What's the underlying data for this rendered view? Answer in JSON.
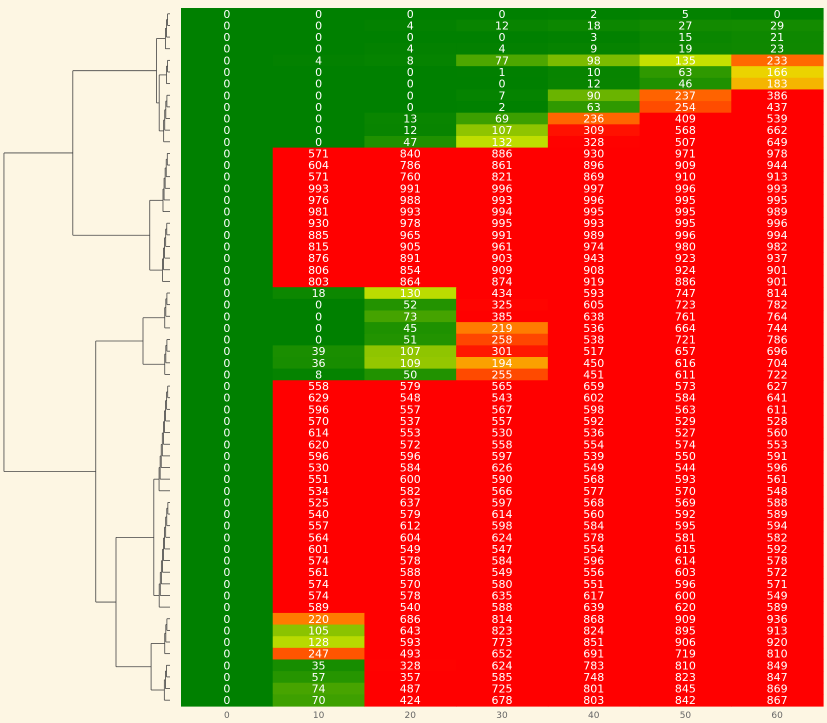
{
  "chart_data": {
    "type": "heatmap",
    "x_ticks": [
      "0",
      "10",
      "20",
      "30",
      "40",
      "50",
      "60"
    ],
    "columns": [
      "0",
      "10",
      "20",
      "30",
      "40",
      "50",
      "60"
    ],
    "color_scale": {
      "low": "#008000",
      "mid_low": "#80c000",
      "mid": "#e0f000",
      "mid_high": "#ff8000",
      "high": "#ff0000",
      "note": "continuous green→yellow→orange→red by value"
    },
    "cell_text_color": "#ffffff",
    "dendrogram": "left",
    "rows": [
      [
        0,
        0,
        0,
        0,
        2,
        5,
        0
      ],
      [
        0,
        0,
        4,
        12,
        18,
        27,
        29
      ],
      [
        0,
        0,
        0,
        0,
        3,
        15,
        21
      ],
      [
        0,
        0,
        4,
        4,
        9,
        19,
        23
      ],
      [
        0,
        4,
        8,
        77,
        98,
        135,
        233
      ],
      [
        0,
        0,
        0,
        1,
        10,
        63,
        166
      ],
      [
        0,
        0,
        0,
        0,
        12,
        46,
        183
      ],
      [
        0,
        0,
        0,
        7,
        90,
        237,
        386
      ],
      [
        0,
        0,
        0,
        2,
        63,
        254,
        437
      ],
      [
        0,
        0,
        13,
        69,
        236,
        409,
        539
      ],
      [
        0,
        0,
        12,
        107,
        309,
        568,
        662
      ],
      [
        0,
        0,
        47,
        132,
        328,
        507,
        649
      ],
      [
        0,
        571,
        840,
        886,
        930,
        971,
        978
      ],
      [
        0,
        604,
        786,
        861,
        896,
        909,
        944
      ],
      [
        0,
        571,
        760,
        821,
        869,
        910,
        913
      ],
      [
        0,
        993,
        991,
        996,
        997,
        996,
        993
      ],
      [
        0,
        976,
        988,
        993,
        996,
        995,
        995
      ],
      [
        0,
        981,
        993,
        994,
        995,
        995,
        989
      ],
      [
        0,
        930,
        978,
        995,
        993,
        995,
        996
      ],
      [
        0,
        885,
        965,
        991,
        989,
        996,
        994
      ],
      [
        0,
        815,
        905,
        961,
        974,
        980,
        982
      ],
      [
        0,
        876,
        891,
        903,
        943,
        923,
        937
      ],
      [
        0,
        806,
        854,
        909,
        908,
        924,
        901
      ],
      [
        0,
        803,
        864,
        874,
        919,
        886,
        901
      ],
      [
        0,
        18,
        130,
        434,
        593,
        747,
        814
      ],
      [
        0,
        0,
        52,
        325,
        605,
        723,
        782
      ],
      [
        0,
        0,
        73,
        385,
        638,
        761,
        764
      ],
      [
        0,
        0,
        45,
        219,
        536,
        664,
        744
      ],
      [
        0,
        0,
        51,
        258,
        538,
        721,
        786
      ],
      [
        0,
        39,
        107,
        301,
        517,
        657,
        696
      ],
      [
        0,
        36,
        109,
        194,
        450,
        616,
        704
      ],
      [
        0,
        8,
        50,
        255,
        451,
        611,
        722
      ],
      [
        0,
        558,
        579,
        565,
        659,
        573,
        627
      ],
      [
        0,
        629,
        548,
        543,
        602,
        584,
        641
      ],
      [
        0,
        596,
        557,
        567,
        598,
        563,
        611
      ],
      [
        0,
        570,
        537,
        557,
        592,
        529,
        528
      ],
      [
        0,
        614,
        553,
        530,
        536,
        527,
        560
      ],
      [
        0,
        620,
        572,
        558,
        554,
        574,
        553
      ],
      [
        0,
        596,
        596,
        597,
        539,
        550,
        591
      ],
      [
        0,
        530,
        584,
        626,
        549,
        544,
        596
      ],
      [
        0,
        551,
        600,
        590,
        568,
        593,
        561
      ],
      [
        0,
        534,
        582,
        566,
        577,
        570,
        548
      ],
      [
        0,
        525,
        637,
        597,
        568,
        569,
        588
      ],
      [
        0,
        540,
        579,
        614,
        560,
        592,
        589
      ],
      [
        0,
        557,
        612,
        598,
        584,
        595,
        594
      ],
      [
        0,
        564,
        604,
        624,
        578,
        581,
        582
      ],
      [
        0,
        601,
        549,
        547,
        554,
        615,
        592
      ],
      [
        0,
        574,
        578,
        584,
        596,
        614,
        578
      ],
      [
        0,
        561,
        588,
        549,
        556,
        603,
        572
      ],
      [
        0,
        574,
        570,
        580,
        551,
        596,
        571
      ],
      [
        0,
        574,
        578,
        635,
        617,
        600,
        549
      ],
      [
        0,
        589,
        540,
        588,
        639,
        620,
        589
      ],
      [
        0,
        220,
        686,
        814,
        868,
        909,
        936
      ],
      [
        0,
        105,
        643,
        823,
        824,
        895,
        913
      ],
      [
        0,
        128,
        593,
        773,
        851,
        906,
        920
      ],
      [
        0,
        247,
        493,
        652,
        691,
        719,
        810
      ],
      [
        0,
        35,
        328,
        624,
        783,
        810,
        849
      ],
      [
        0,
        57,
        357,
        585,
        748,
        823,
        847
      ],
      [
        0,
        74,
        487,
        725,
        801,
        845,
        869
      ],
      [
        0,
        70,
        424,
        678,
        803,
        842,
        867
      ]
    ]
  }
}
